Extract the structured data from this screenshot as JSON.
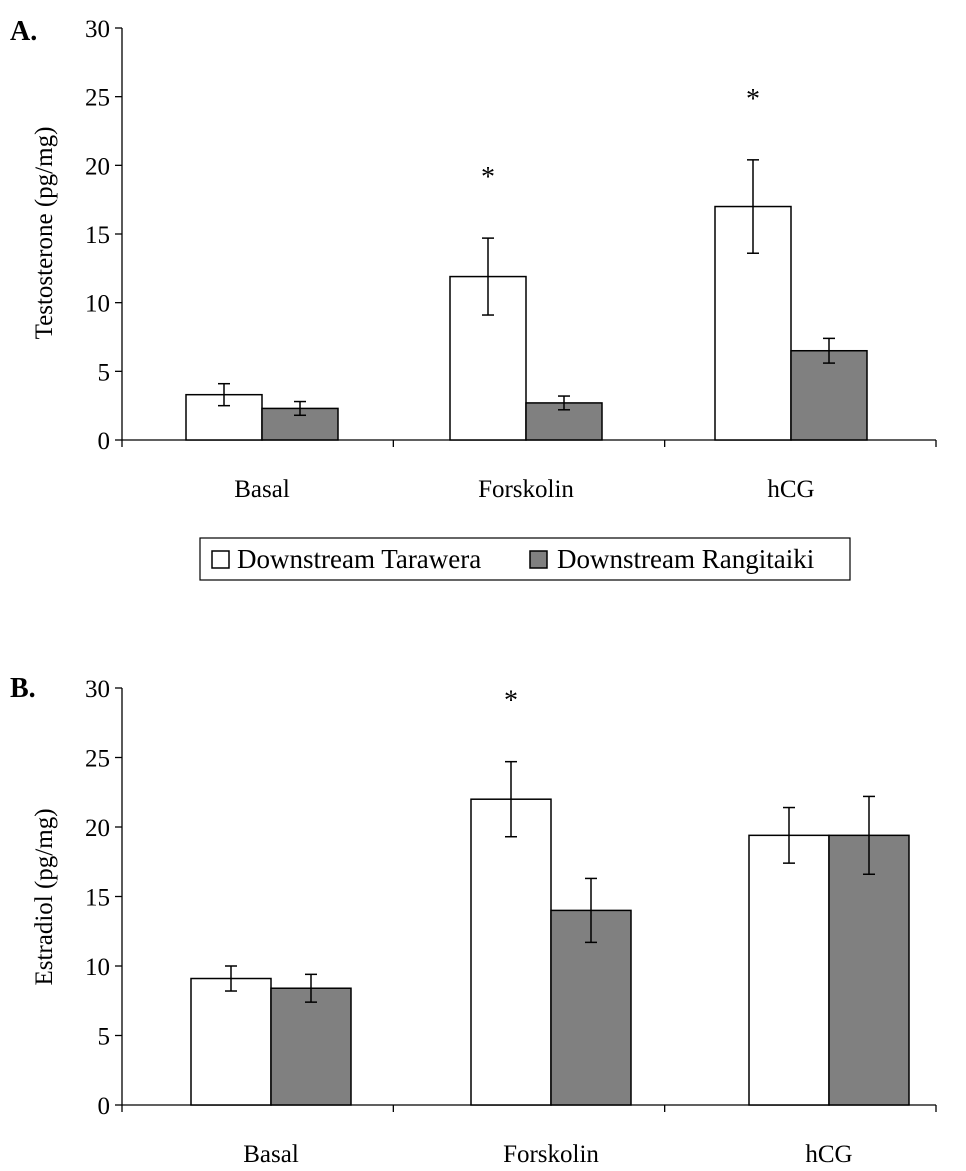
{
  "chart_data": [
    {
      "type": "bar",
      "panel": "A.",
      "title": "",
      "xlabel": "",
      "ylabel": "Testosterone (pg/mg)",
      "ylim": [
        0,
        30
      ],
      "yticks": [
        0,
        5,
        10,
        15,
        20,
        25,
        30
      ],
      "categories": [
        "Basal",
        "Forskolin",
        "hCG"
      ],
      "series": [
        {
          "name": "Downstream Tarawera",
          "color": "#ffffff",
          "values": [
            3.3,
            11.9,
            17.0
          ],
          "errors": [
            0.8,
            2.8,
            3.4
          ]
        },
        {
          "name": "Downstream Rangitaiki",
          "color": "#808080",
          "values": [
            2.3,
            2.7,
            6.5
          ],
          "errors": [
            0.5,
            0.5,
            0.9
          ]
        }
      ],
      "significance": [
        {
          "category": "Forskolin",
          "series": "Downstream Tarawera",
          "label": "*"
        },
        {
          "category": "hCG",
          "series": "Downstream Tarawera",
          "label": "*"
        }
      ],
      "legend": "bottom",
      "grid": false
    },
    {
      "type": "bar",
      "panel": "B.",
      "title": "",
      "xlabel": "",
      "ylabel": "Estradiol (pg/mg)",
      "ylim": [
        0,
        30
      ],
      "yticks": [
        0,
        5,
        10,
        15,
        20,
        25,
        30
      ],
      "categories": [
        "Basal",
        "Forskolin",
        "hCG"
      ],
      "series": [
        {
          "name": "Downstream Tarawera",
          "color": "#ffffff",
          "values": [
            9.1,
            22.0,
            19.4
          ],
          "errors": [
            0.9,
            2.7,
            2.0
          ]
        },
        {
          "name": "Downstream Rangitaiki",
          "color": "#808080",
          "values": [
            8.4,
            14.0,
            19.4
          ],
          "errors": [
            1.0,
            2.3,
            2.8
          ]
        }
      ],
      "significance": [
        {
          "category": "Forskolin",
          "series": "Downstream Tarawera",
          "label": "*"
        }
      ],
      "legend": "none",
      "grid": false
    }
  ]
}
